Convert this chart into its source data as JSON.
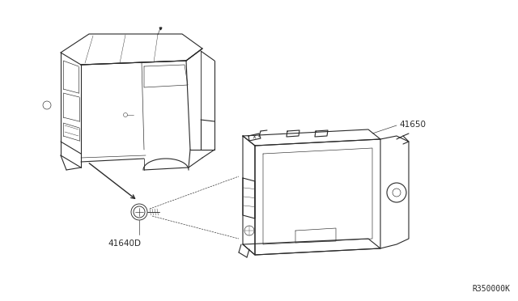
{
  "background_color": "#ffffff",
  "line_color": "#2a2a2a",
  "part_label_1": "41650",
  "part_label_2": "41640D",
  "ref_code": "R350000K",
  "label_fontsize": 7.5,
  "ref_fontsize": 7.0,
  "figwidth": 6.4,
  "figheight": 3.72,
  "dpi": 100,
  "lw_main": 0.8,
  "lw_thin": 0.45
}
